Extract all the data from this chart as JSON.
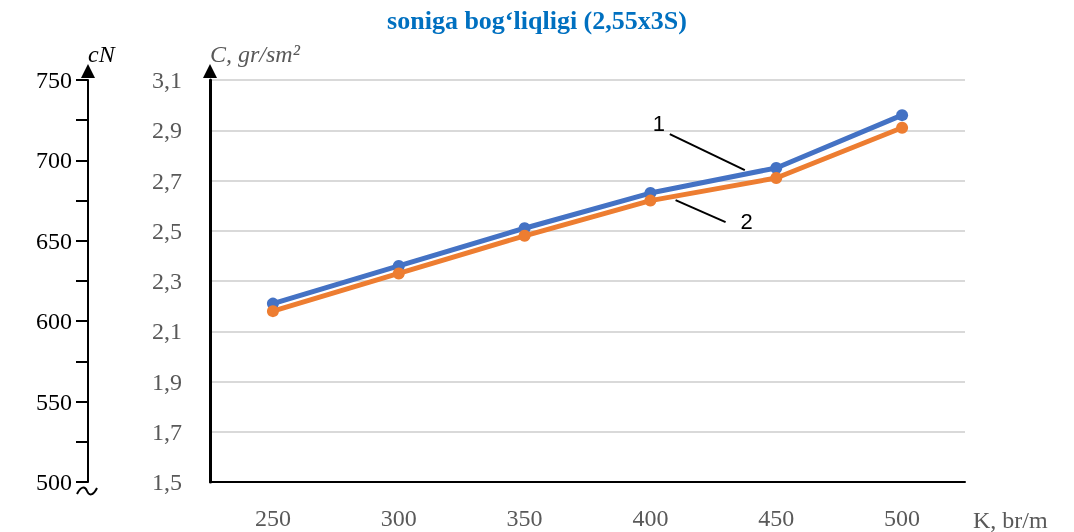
{
  "chart_data": {
    "type": "line",
    "title": "soniga bog‘liqligi (2,55x3S)",
    "xlabel": "K, br/m",
    "ylabel": "C, gr/sm²",
    "y2label": "cN",
    "categories": [
      "250",
      "300",
      "350",
      "400",
      "450",
      "500"
    ],
    "series": [
      {
        "name": "1",
        "color": "#4472c4",
        "values": [
          2.21,
          2.36,
          2.51,
          2.65,
          2.75,
          2.96
        ]
      },
      {
        "name": "2",
        "color": "#ed7d31",
        "values": [
          2.18,
          2.33,
          2.48,
          2.62,
          2.71,
          2.91
        ]
      }
    ],
    "ylim": [
      1.5,
      3.1
    ],
    "yticks": [
      {
        "value": 1.5,
        "label": "1,5"
      },
      {
        "value": 1.7,
        "label": "1,7"
      },
      {
        "value": 1.9,
        "label": "1,9"
      },
      {
        "value": 2.1,
        "label": "2,1"
      },
      {
        "value": 2.3,
        "label": "2,3"
      },
      {
        "value": 2.5,
        "label": "2,5"
      },
      {
        "value": 2.7,
        "label": "2,7"
      },
      {
        "value": 2.9,
        "label": "2,9"
      },
      {
        "value": 3.1,
        "label": "3,1"
      }
    ],
    "y2lim": [
      500,
      750
    ],
    "y2ticks": [
      500,
      550,
      600,
      650,
      700,
      750
    ],
    "grid": "y",
    "legend": false,
    "marker": "circle",
    "line_style": "solid"
  }
}
